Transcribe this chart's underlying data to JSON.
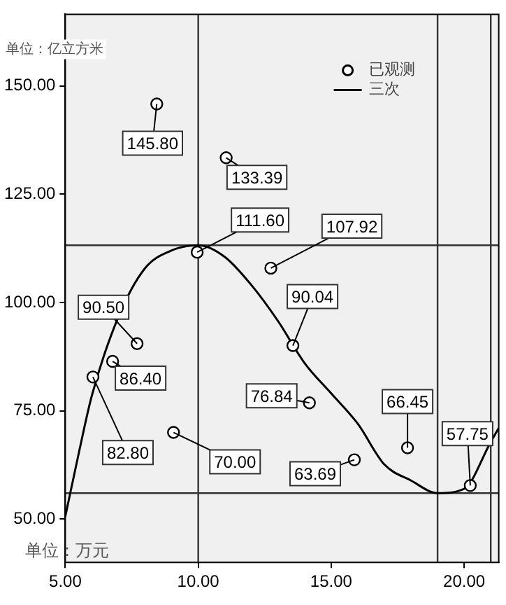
{
  "chart_data": {
    "type": "scatter",
    "xlabel": "单位：万元",
    "ylabel": "单位：亿立方米",
    "xlim": [
      5,
      21.3
    ],
    "xticks": [
      {
        "value": 5,
        "label": "5.00"
      },
      {
        "value": 10,
        "label": "10.00"
      },
      {
        "value": 15,
        "label": "15.00"
      },
      {
        "value": 20,
        "label": "20.00"
      }
    ],
    "ylim": [
      40,
      166.5
    ],
    "yticks": [
      {
        "value": 50,
        "label": "50.00"
      },
      {
        "value": 75,
        "label": "75.00"
      },
      {
        "value": 100,
        "label": "100.00"
      },
      {
        "value": 125,
        "label": "125.00"
      },
      {
        "value": 150,
        "label": "150.00"
      }
    ],
    "series": [
      {
        "name": "已观测",
        "color": "#000000",
        "marker": "circle",
        "x": [
          6.04,
          6.78,
          7.7,
          8.44,
          9.07,
          9.96,
          11.05,
          12.73,
          13.56,
          14.18,
          15.87,
          17.87,
          20.23
        ],
        "values": [
          82.8,
          86.4,
          90.5,
          145.8,
          70.0,
          111.6,
          133.39,
          107.92,
          90.04,
          76.84,
          63.69,
          66.45,
          57.75
        ],
        "value_labels": [
          "82.80",
          "86.40",
          "90.50",
          "145.80",
          "70.00",
          "111.60",
          "133.39",
          "107.92",
          "90.04",
          "76.84",
          "63.69",
          "66.45",
          "57.75"
        ]
      },
      {
        "name": "三次",
        "type": "line",
        "color": "#000000",
        "marker": "none",
        "x": [
          5,
          5.5,
          6,
          7,
          8,
          9,
          10,
          11,
          12,
          13,
          14,
          15,
          16,
          17,
          18,
          19,
          20,
          21,
          21.3
        ],
        "values": [
          50.6,
          65,
          78.5,
          96.7,
          107.9,
          112,
          113.2,
          110.5,
          104,
          95.7,
          86,
          79,
          72,
          62.6,
          58.9,
          56,
          57,
          67.8,
          71
        ]
      }
    ],
    "ref_lines": [
      {
        "axis": "x",
        "value": 10,
        "color": "#333333"
      },
      {
        "axis": "x",
        "value": 19,
        "color": "#333333"
      },
      {
        "axis": "x",
        "value": 21,
        "color": "#333333"
      },
      {
        "axis": "y",
        "value": 113.2,
        "color": "#333333"
      },
      {
        "axis": "y",
        "value": 56,
        "color": "#333333"
      }
    ],
    "legend": "top right",
    "grid": false
  }
}
